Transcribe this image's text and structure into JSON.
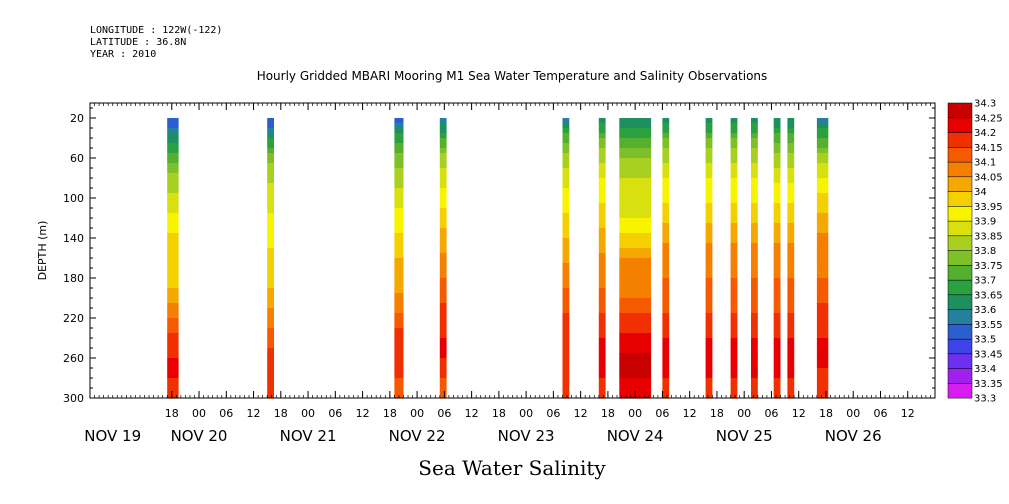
{
  "header": {
    "longitude": "LONGITUDE : 122W(-122)",
    "latitude": "LATITUDE : 36.8N",
    "year": "YEAR : 2010"
  },
  "chart_data": {
    "type": "heatmap",
    "title": "Hourly Gridded MBARI Mooring M1 Sea Water Temperature and Salinity Observations",
    "xlabel": "Sea Water Salinity",
    "ylabel": "DEPTH (m)",
    "y_ticks": [
      20,
      60,
      100,
      140,
      180,
      220,
      260,
      300
    ],
    "ylim": [
      300,
      5
    ],
    "x_hour_ticks": [
      "18",
      "00",
      "06",
      "12",
      "18",
      "00",
      "06",
      "12",
      "18",
      "00",
      "06",
      "12",
      "18",
      "00",
      "06",
      "12",
      "18",
      "00",
      "06",
      "12",
      "18",
      "00",
      "06",
      "12",
      "18",
      "00",
      "06",
      "12"
    ],
    "x_date_labels": [
      "NOV 19",
      "NOV 20",
      "NOV 21",
      "NOV 22",
      "NOV 23",
      "NOV 24",
      "NOV 25",
      "NOV 26"
    ],
    "xlim_hours_from_nov19_00": [
      0,
      186
    ],
    "colorbar": {
      "levels": [
        33.3,
        33.35,
        33.4,
        33.45,
        33.5,
        33.55,
        33.6,
        33.65,
        33.7,
        33.75,
        33.8,
        33.85,
        33.9,
        33.95,
        34,
        34.05,
        34.1,
        34.15,
        34.2,
        34.25,
        34.3
      ],
      "colors": [
        "#d71cf0",
        "#a020f0",
        "#6f2ff0",
        "#3e43e8",
        "#2a5fd0",
        "#2580a0",
        "#1e9060",
        "#2aa040",
        "#55b030",
        "#7ec02a",
        "#a8d020",
        "#d8e010",
        "#f8f400",
        "#f5d000",
        "#f5a800",
        "#f58000",
        "#f55a00",
        "#f03000",
        "#e80000",
        "#c80000"
      ]
    },
    "series": [
      {
        "x": [
          17,
          19.5
        ],
        "depth": [
          20,
          40,
          60,
          80,
          100,
          120,
          140,
          160,
          180,
          200,
          220,
          240,
          260,
          280,
          300
        ],
        "salinity": [
          33.5,
          33.62,
          33.73,
          33.81,
          33.86,
          33.92,
          33.96,
          33.96,
          33.97,
          34.02,
          34.1,
          34.16,
          34.2,
          34.2,
          34.15
        ]
      },
      {
        "x": [
          39,
          40.5
        ],
        "depth": [
          20,
          40,
          60,
          80,
          100,
          120,
          140,
          160,
          180,
          200,
          220,
          240,
          260,
          280,
          300
        ],
        "salinity": [
          33.48,
          33.64,
          33.78,
          33.84,
          33.88,
          33.91,
          33.94,
          33.96,
          33.98,
          34.02,
          34.08,
          34.13,
          34.17,
          34.2,
          34.15
        ]
      },
      {
        "x": [
          67,
          69
        ],
        "depth": [
          20,
          40,
          60,
          80,
          100,
          120,
          140,
          160,
          180,
          200,
          220,
          240,
          260,
          280,
          300
        ],
        "salinity": [
          33.52,
          33.68,
          33.78,
          33.83,
          33.87,
          33.92,
          33.96,
          34.0,
          34.03,
          34.06,
          34.12,
          34.18,
          34.2,
          34.15,
          34.1
        ]
      },
      {
        "x": [
          77,
          78.5
        ],
        "depth": [
          20,
          40,
          60,
          80,
          100,
          120,
          140,
          160,
          180,
          200,
          220,
          240,
          260,
          280,
          300
        ],
        "salinity": [
          33.55,
          33.7,
          33.82,
          33.88,
          33.93,
          33.97,
          34.02,
          34.06,
          34.1,
          34.14,
          34.18,
          34.2,
          34.2,
          34.15,
          34.1
        ]
      },
      {
        "x": [
          104,
          105.5
        ],
        "depth": [
          20,
          40,
          60,
          80,
          100,
          120,
          140,
          160,
          180,
          200,
          220,
          240,
          260,
          280,
          300
        ],
        "salinity": [
          33.58,
          33.72,
          33.82,
          33.88,
          33.92,
          33.96,
          34.0,
          34.04,
          34.08,
          34.12,
          34.16,
          34.18,
          34.2,
          34.18,
          34.15
        ]
      },
      {
        "x": [
          112,
          113.5
        ],
        "depth": [
          20,
          40,
          60,
          80,
          100,
          120,
          140,
          160,
          180,
          200,
          220,
          240,
          260,
          280,
          300
        ],
        "salinity": [
          33.6,
          33.74,
          33.84,
          33.9,
          33.94,
          33.98,
          34.02,
          34.06,
          34.08,
          34.12,
          34.16,
          34.2,
          34.22,
          34.2,
          34.18
        ]
      },
      {
        "x": [
          116.5,
          123.5
        ],
        "depth": [
          20,
          40,
          60,
          80,
          100,
          120,
          140,
          160,
          180,
          200,
          220,
          240,
          260,
          280,
          300
        ],
        "salinity": [
          33.6,
          33.7,
          33.8,
          33.85,
          33.88,
          33.9,
          33.96,
          34.05,
          34.08,
          34.1,
          34.16,
          34.22,
          34.26,
          34.25,
          34.2
        ]
      },
      {
        "x": [
          126,
          127.5
        ],
        "depth": [
          20,
          40,
          60,
          80,
          100,
          120,
          140,
          160,
          180,
          200,
          220,
          240,
          260,
          280,
          300
        ],
        "salinity": [
          33.6,
          33.74,
          33.84,
          33.9,
          33.94,
          33.98,
          34.04,
          34.08,
          34.1,
          34.12,
          34.16,
          34.2,
          34.22,
          34.2,
          34.18
        ]
      },
      {
        "x": [
          135.5,
          137
        ],
        "depth": [
          20,
          40,
          60,
          80,
          100,
          120,
          140,
          160,
          180,
          200,
          220,
          240,
          260,
          280,
          300
        ],
        "salinity": [
          33.6,
          33.74,
          33.84,
          33.9,
          33.94,
          33.98,
          34.04,
          34.08,
          34.1,
          34.12,
          34.16,
          34.2,
          34.22,
          34.2,
          34.18
        ]
      },
      {
        "x": [
          141,
          142.5
        ],
        "depth": [
          20,
          40,
          60,
          80,
          100,
          120,
          140,
          160,
          180,
          200,
          220,
          240,
          260,
          280,
          300
        ],
        "salinity": [
          33.6,
          33.74,
          33.84,
          33.9,
          33.94,
          33.98,
          34.04,
          34.08,
          34.1,
          34.12,
          34.16,
          34.2,
          34.22,
          34.2,
          34.18
        ]
      },
      {
        "x": [
          145.5,
          147
        ],
        "depth": [
          20,
          40,
          60,
          80,
          100,
          120,
          140,
          160,
          180,
          200,
          220,
          240,
          260,
          280,
          300
        ],
        "salinity": [
          33.6,
          33.74,
          33.84,
          33.9,
          33.94,
          33.98,
          34.04,
          34.08,
          34.1,
          34.12,
          34.16,
          34.2,
          34.22,
          34.2,
          34.18
        ]
      },
      {
        "x": [
          150.5,
          152
        ],
        "depth": [
          20,
          40,
          60,
          80,
          100,
          120,
          140,
          160,
          180,
          200,
          220,
          240,
          260,
          280,
          300
        ],
        "salinity": [
          33.6,
          33.72,
          33.82,
          33.88,
          33.94,
          33.98,
          34.04,
          34.08,
          34.1,
          34.12,
          34.16,
          34.2,
          34.22,
          34.2,
          34.18
        ]
      },
      {
        "x": [
          153.5,
          155
        ],
        "depth": [
          20,
          40,
          60,
          80,
          100,
          120,
          140,
          160,
          180,
          200,
          220,
          240,
          260,
          280,
          300
        ],
        "salinity": [
          33.6,
          33.72,
          33.82,
          33.88,
          33.94,
          33.98,
          34.04,
          34.08,
          34.1,
          34.12,
          34.16,
          34.2,
          34.22,
          34.2,
          34.18
        ]
      },
      {
        "x": [
          160,
          162.5
        ],
        "depth": [
          20,
          40,
          60,
          80,
          100,
          120,
          140,
          160,
          180,
          200,
          220,
          240,
          260,
          280,
          300
        ],
        "salinity": [
          33.58,
          33.7,
          33.82,
          33.9,
          33.96,
          34.02,
          34.06,
          34.08,
          34.1,
          34.14,
          34.18,
          34.2,
          34.22,
          34.18,
          34.15
        ]
      }
    ]
  }
}
